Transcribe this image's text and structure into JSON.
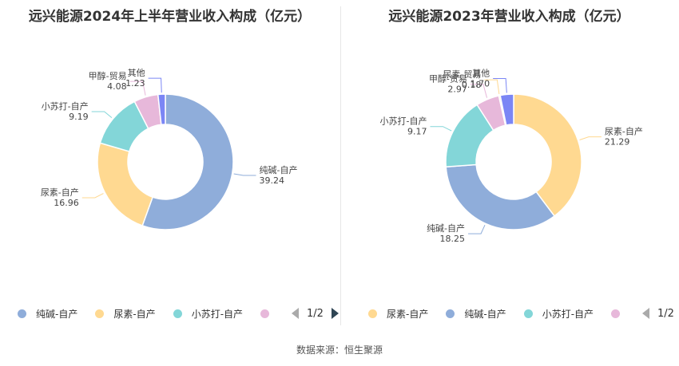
{
  "chart_data": [
    {
      "type": "pie",
      "variant": "donut",
      "title": "远兴能源2024年上半年营业收入构成（亿元）",
      "slices": [
        {
          "label": "纯碱-自产",
          "value": 39.24,
          "color": "#8fadda"
        },
        {
          "label": "尿素-自产",
          "value": 16.96,
          "color": "#ffd991"
        },
        {
          "label": "小苏打-自产",
          "value": 9.19,
          "color": "#83d6d8"
        },
        {
          "label": "甲醇-贸易",
          "value": 4.08,
          "color": "#e7b8da"
        },
        {
          "label": "其他",
          "value": 1.23,
          "color": "#7b86f5"
        }
      ],
      "legend": {
        "items": [
          "纯碱-自产",
          "尿素-自产",
          "小苏打-自产"
        ],
        "page": "1/2",
        "position": "bottom"
      }
    },
    {
      "type": "pie",
      "variant": "donut",
      "title": "远兴能源2023年营业收入构成（亿元）",
      "slices": [
        {
          "label": "尿素-自产",
          "value": 21.29,
          "color": "#ffd991"
        },
        {
          "label": "纯碱-自产",
          "value": 18.25,
          "color": "#8fadda"
        },
        {
          "label": "小苏打-自产",
          "value": 9.17,
          "color": "#83d6d8"
        },
        {
          "label": "甲醇-贸易",
          "value": 2.97,
          "color": "#e7b8da"
        },
        {
          "label": "尿素-贸易",
          "value": 0.18,
          "color": "#ffd991"
        },
        {
          "label": "其他",
          "value": 1.7,
          "color": "#7b86f5"
        }
      ],
      "legend": {
        "items": [
          "尿素-自产",
          "纯碱-自产",
          "小苏打-自产"
        ],
        "page": "1/2",
        "position": "bottom"
      }
    }
  ],
  "legend_colors": {
    "left": [
      "#8fadda",
      "#ffd991",
      "#83d6d8",
      "#e7b8da"
    ],
    "right": [
      "#ffd991",
      "#8fadda",
      "#83d6d8",
      "#e7b8da"
    ]
  },
  "source": "数据来源：恒生聚源"
}
